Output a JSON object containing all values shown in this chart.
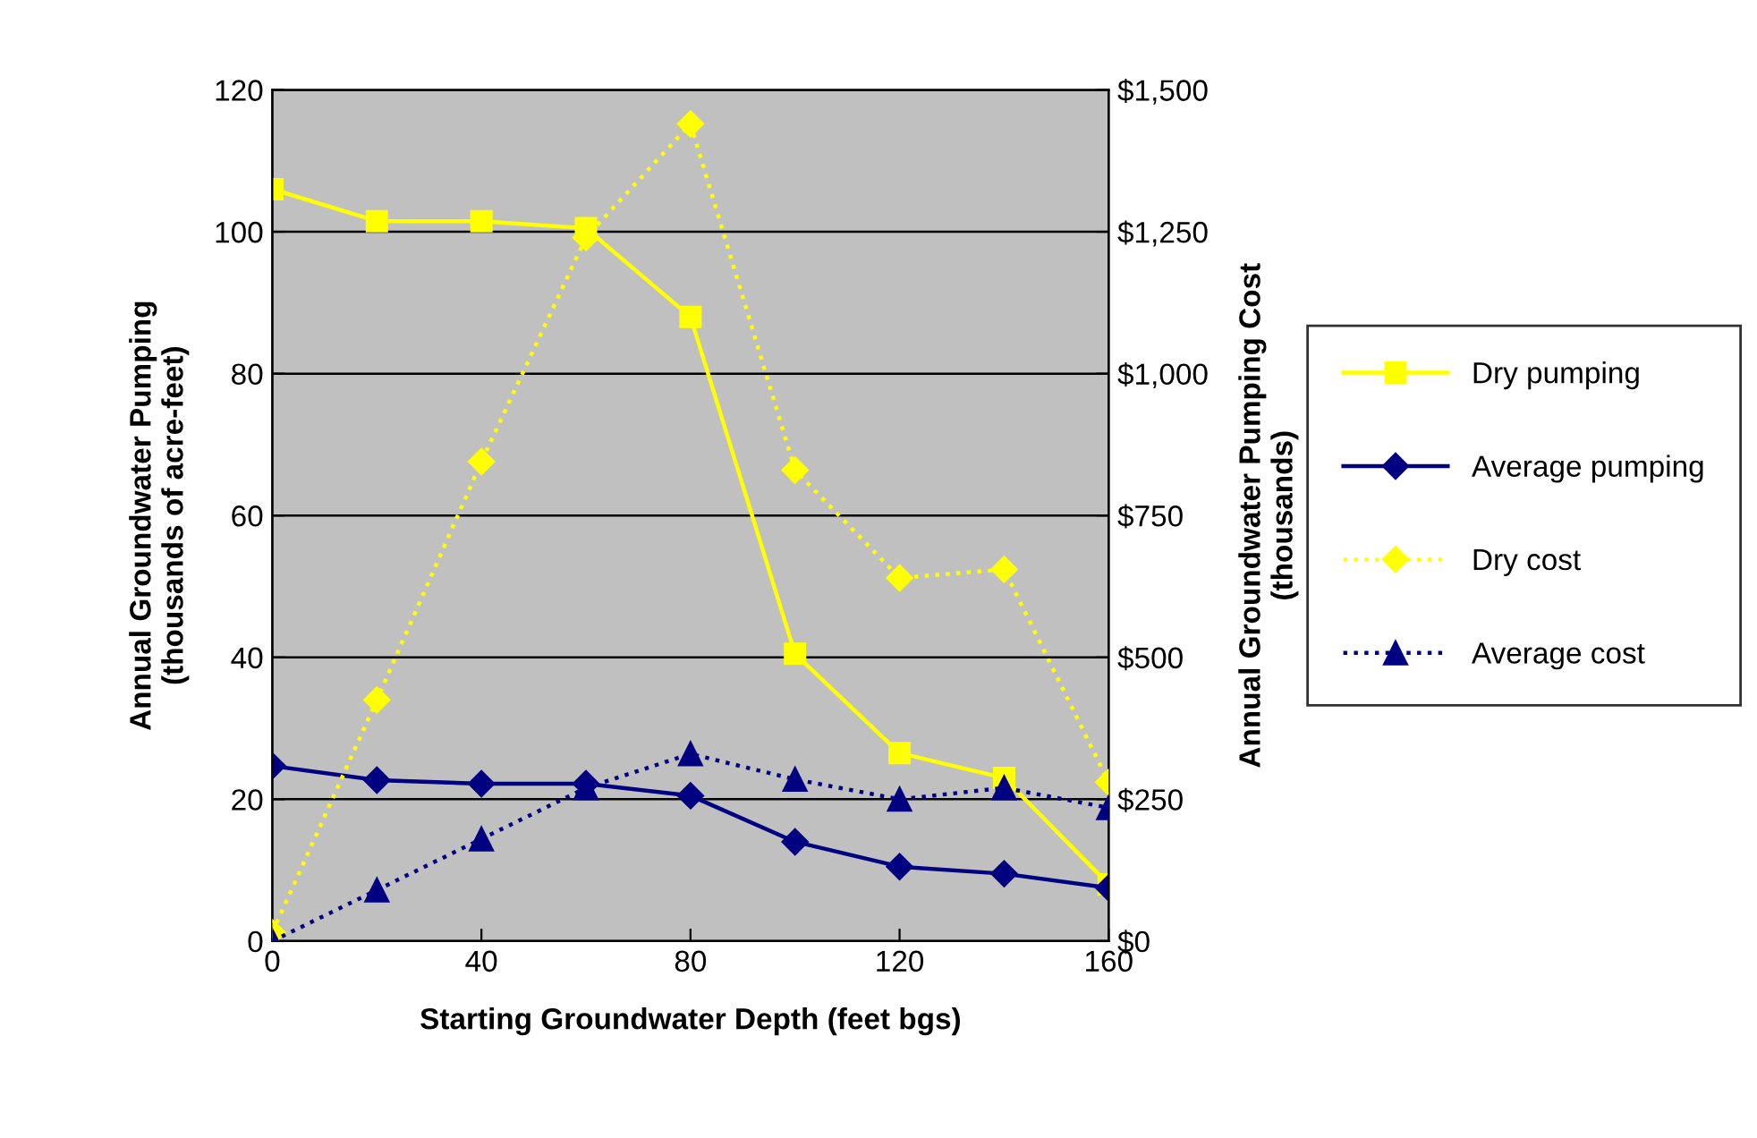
{
  "chart_data": {
    "type": "line",
    "xlabel": "Starting Groundwater Depth (feet bgs)",
    "ylabel": "Annual Groundwater Pumping\n(thousands of acre-feet)",
    "y2label": "Annual Groundwater Pumping Cost\n(thousands)",
    "x": [
      0,
      20,
      40,
      60,
      80,
      100,
      120,
      140,
      160
    ],
    "xlim": [
      0,
      160
    ],
    "xticks": [
      0,
      40,
      80,
      120,
      160
    ],
    "ylim": [
      0,
      120
    ],
    "yticks": [
      0,
      20,
      40,
      60,
      80,
      100,
      120
    ],
    "y2lim": [
      0,
      1500
    ],
    "y2ticks": [
      {
        "value": 0,
        "label": "$0"
      },
      {
        "value": 250,
        "label": "$250"
      },
      {
        "value": 500,
        "label": "$500"
      },
      {
        "value": 750,
        "label": "$750"
      },
      {
        "value": 1000,
        "label": "$1,000"
      },
      {
        "value": 1250,
        "label": "$1,250"
      },
      {
        "value": 1500,
        "label": "$1,500"
      }
    ],
    "grid": "y",
    "legend": "right",
    "series": [
      {
        "name": "Dry pumping",
        "color": "#ffff00",
        "marker": "square",
        "line_style": "solid",
        "values": [
          106,
          101.5,
          101.5,
          100.5,
          88,
          40.5,
          26.5,
          23,
          8
        ]
      },
      {
        "name": "Average pumping",
        "color": "#000080",
        "marker": "diamond",
        "line_style": "solid",
        "values": [
          24.7,
          22.7,
          22.2,
          22.2,
          20.5,
          14,
          10.5,
          9.5,
          7.5
        ]
      },
      {
        "name": "Dry cost",
        "color": "#ffff00",
        "marker": "diamond",
        "line_style": "dotted",
        "axis": "y2",
        "values": [
          15,
          425,
          845,
          1240,
          1440,
          830,
          640,
          655,
          280
        ]
      },
      {
        "name": "Average cost",
        "color": "#000080",
        "marker": "triangle",
        "line_style": "dotted",
        "axis": "y2",
        "values": [
          0,
          90,
          180,
          270,
          330,
          285,
          250,
          270,
          235
        ]
      }
    ]
  }
}
